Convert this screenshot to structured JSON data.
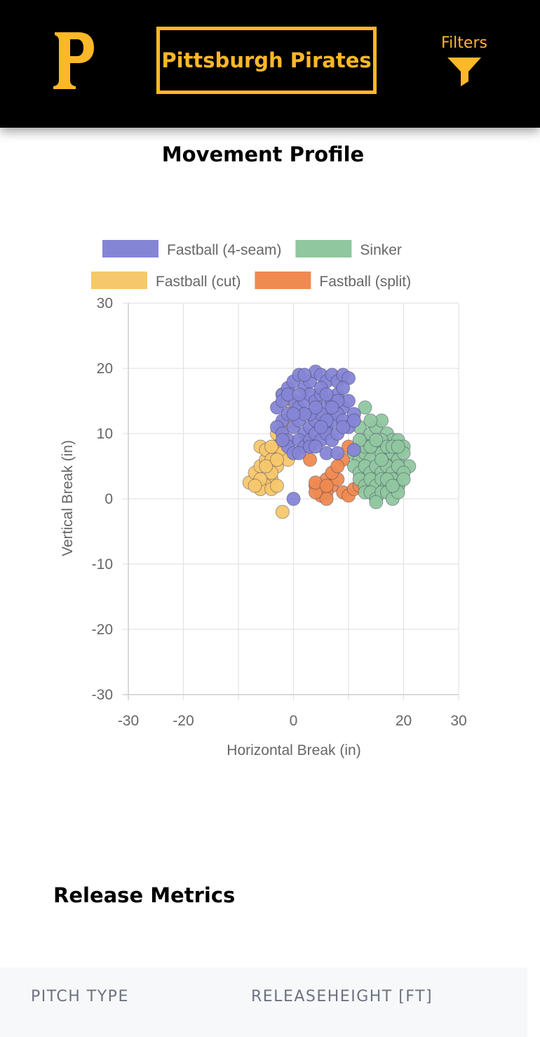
{
  "header": {
    "logo_icon": "pirates-p-logo-icon",
    "team_button_label": "Pittsburgh Pirates",
    "filters_label": "Filters",
    "filters_icon": "funnel-icon",
    "accent_color": "#FDB827",
    "background_color": "#000000"
  },
  "movement": {
    "title": "Movement Profile"
  },
  "chart_data": {
    "type": "scatter",
    "title": "",
    "xlabel": "Horizontal Break (in)",
    "ylabel": "Vertical Break (in)",
    "xlim": [
      -30,
      30
    ],
    "ylim": [
      -30,
      30
    ],
    "x_ticks": [
      -30,
      -20,
      0,
      20,
      30
    ],
    "y_ticks": [
      30,
      20,
      10,
      0,
      -10,
      -20,
      -30
    ],
    "grid": true,
    "legend_position": "top",
    "series": [
      {
        "name": "Fastball (4-seam)",
        "color": "#8585d6",
        "points": [
          [
            -3,
            14
          ],
          [
            -2,
            16
          ],
          [
            -1,
            17
          ],
          [
            0,
            18
          ],
          [
            1,
            19
          ],
          [
            2,
            17
          ],
          [
            3,
            18
          ],
          [
            4,
            19.5
          ],
          [
            5,
            19
          ],
          [
            6,
            18
          ],
          [
            7,
            19
          ],
          [
            8,
            18
          ],
          [
            9,
            19
          ],
          [
            10,
            18.5
          ],
          [
            -2,
            12
          ],
          [
            -1,
            13
          ],
          [
            0,
            15
          ],
          [
            1,
            14
          ],
          [
            2,
            15
          ],
          [
            3,
            16
          ],
          [
            4,
            15
          ],
          [
            5,
            16
          ],
          [
            6,
            14
          ],
          [
            7,
            15
          ],
          [
            8,
            16
          ],
          [
            9,
            14
          ],
          [
            10,
            15
          ],
          [
            11,
            13
          ],
          [
            -3,
            11
          ],
          [
            -2,
            10
          ],
          [
            -1,
            9
          ],
          [
            0,
            11
          ],
          [
            1,
            12
          ],
          [
            2,
            10
          ],
          [
            3,
            11
          ],
          [
            4,
            12
          ],
          [
            5,
            13
          ],
          [
            6,
            11
          ],
          [
            7,
            12
          ],
          [
            8,
            13
          ],
          [
            9,
            12
          ],
          [
            10,
            11
          ],
          [
            11,
            12
          ],
          [
            -1,
            8
          ],
          [
            0,
            7
          ],
          [
            1,
            9
          ],
          [
            2,
            8
          ],
          [
            3,
            9
          ],
          [
            4,
            10
          ],
          [
            5,
            9
          ],
          [
            6,
            10
          ],
          [
            7,
            9
          ],
          [
            8,
            10
          ],
          [
            9,
            11
          ],
          [
            -2,
            15
          ],
          [
            -1,
            16
          ],
          [
            2,
            19
          ],
          [
            5,
            17
          ],
          [
            8,
            15
          ],
          [
            3,
            13
          ],
          [
            4,
            14
          ],
          [
            6,
            16
          ],
          [
            7,
            14
          ],
          [
            -2,
            9
          ],
          [
            1,
            7
          ],
          [
            3,
            8
          ],
          [
            4,
            8
          ],
          [
            6,
            7
          ],
          [
            8,
            7
          ],
          [
            11,
            7.5
          ],
          [
            2,
            13
          ],
          [
            0,
            13
          ],
          [
            1,
            16
          ],
          [
            9,
            17
          ],
          [
            6,
            12
          ],
          [
            5,
            11
          ],
          [
            0,
            0
          ]
        ]
      },
      {
        "name": "Sinker",
        "color": "#90c79f",
        "points": [
          [
            13,
            14
          ],
          [
            12,
            11
          ],
          [
            13,
            9
          ],
          [
            14,
            10
          ],
          [
            15,
            11
          ],
          [
            16,
            12
          ],
          [
            17,
            10
          ],
          [
            18,
            9
          ],
          [
            19,
            9
          ],
          [
            20,
            8
          ],
          [
            11,
            7
          ],
          [
            12,
            6
          ],
          [
            13,
            7
          ],
          [
            14,
            6
          ],
          [
            15,
            8
          ],
          [
            16,
            7
          ],
          [
            17,
            6
          ],
          [
            18,
            7
          ],
          [
            19,
            6
          ],
          [
            20,
            7
          ],
          [
            21,
            5
          ],
          [
            11,
            5
          ],
          [
            12,
            4
          ],
          [
            13,
            5
          ],
          [
            14,
            4
          ],
          [
            15,
            5
          ],
          [
            16,
            4
          ],
          [
            17,
            5
          ],
          [
            18,
            4
          ],
          [
            19,
            5
          ],
          [
            20,
            4
          ],
          [
            12,
            3
          ],
          [
            13,
            2
          ],
          [
            14,
            3
          ],
          [
            15,
            2
          ],
          [
            16,
            3
          ],
          [
            17,
            2
          ],
          [
            18,
            3
          ],
          [
            19,
            2
          ],
          [
            13,
            1
          ],
          [
            14,
            1
          ],
          [
            15,
            0
          ],
          [
            16,
            1
          ],
          [
            17,
            1
          ],
          [
            18,
            0
          ],
          [
            19,
            1
          ],
          [
            15,
            -0.5
          ],
          [
            13,
            8
          ],
          [
            14,
            8
          ],
          [
            16,
            9
          ],
          [
            17,
            8
          ],
          [
            18,
            8
          ],
          [
            19,
            8
          ],
          [
            12,
            9
          ],
          [
            14,
            12
          ],
          [
            15,
            9
          ],
          [
            16,
            6
          ],
          [
            17,
            3
          ],
          [
            18,
            2
          ],
          [
            20,
            3
          ]
        ]
      },
      {
        "name": "Fastball (cut)",
        "color": "#f7c76b",
        "points": [
          [
            -8,
            2.5
          ],
          [
            -7,
            4
          ],
          [
            -6,
            5
          ],
          [
            -5,
            6
          ],
          [
            -6,
            8
          ],
          [
            -5,
            7.5
          ],
          [
            -4,
            6
          ],
          [
            -3,
            5
          ],
          [
            -4,
            3
          ],
          [
            -5,
            2
          ],
          [
            -6,
            1.5
          ],
          [
            -4,
            1.5
          ],
          [
            -3,
            8
          ],
          [
            -2,
            7
          ],
          [
            -1,
            6
          ],
          [
            -2,
            9
          ],
          [
            -3,
            10
          ],
          [
            -2,
            16
          ],
          [
            -1,
            15
          ],
          [
            -4,
            4
          ],
          [
            -5,
            5
          ],
          [
            -3,
            6
          ],
          [
            -2,
            -2
          ],
          [
            -6,
            3
          ],
          [
            -4,
            8
          ],
          [
            -2,
            11
          ],
          [
            -1,
            12
          ],
          [
            -7,
            2
          ],
          [
            -3,
            2
          ]
        ]
      },
      {
        "name": "Fastball (split)",
        "color": "#ef8a50",
        "points": [
          [
            3,
            6
          ],
          [
            4,
            2
          ],
          [
            5,
            1.5
          ],
          [
            6,
            3
          ],
          [
            7,
            2
          ],
          [
            8,
            3
          ],
          [
            6,
            1
          ],
          [
            5,
            0.5
          ],
          [
            6,
            0
          ],
          [
            4,
            1
          ],
          [
            9,
            1
          ],
          [
            10,
            0.5
          ],
          [
            11,
            1.5
          ],
          [
            9,
            6
          ],
          [
            10,
            8
          ],
          [
            7,
            4
          ],
          [
            8,
            5
          ],
          [
            12,
            2
          ],
          [
            19,
            2
          ],
          [
            4,
            2.5
          ],
          [
            6,
            2
          ]
        ]
      }
    ]
  },
  "release": {
    "title": "Release Metrics",
    "columns": [
      "PITCH TYPE",
      "RELEASEHEIGHT [FT]"
    ]
  }
}
